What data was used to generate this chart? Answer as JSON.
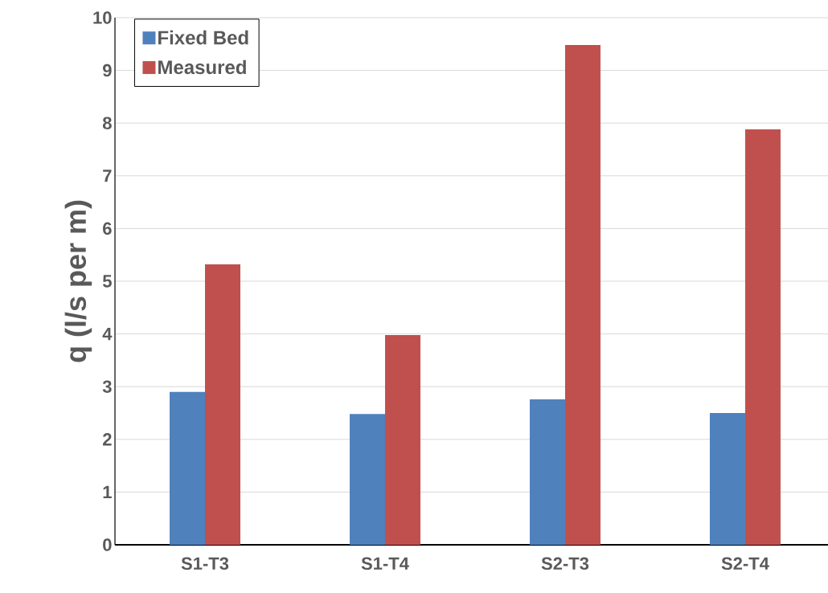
{
  "chart_data": {
    "type": "bar",
    "ylabel": "q (l/s per m)",
    "categories": [
      "S1-T3",
      "S1-T4",
      "S2-T3",
      "S2-T4"
    ],
    "series": [
      {
        "name": "Fixed Bed",
        "color": "#4f81bd",
        "values": [
          2.9,
          2.48,
          2.76,
          2.5
        ]
      },
      {
        "name": "Measured",
        "color": "#c0504d",
        "values": [
          5.32,
          3.98,
          9.48,
          7.88
        ]
      }
    ],
    "ylim": [
      0,
      10
    ],
    "yticks": [
      0,
      1,
      2,
      3,
      4,
      5,
      6,
      7,
      8,
      9,
      10
    ],
    "grid": "y",
    "legend": "top left"
  }
}
